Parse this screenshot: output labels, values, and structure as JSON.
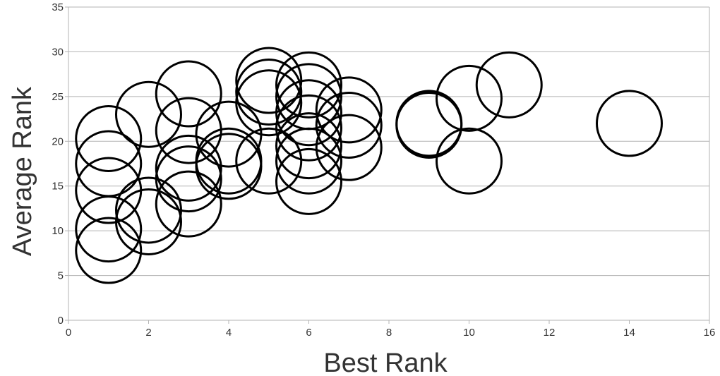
{
  "chart_data": {
    "type": "scatter",
    "subtype": "bubble",
    "title": "",
    "xlabel": "Best Rank",
    "ylabel": "Average Rank",
    "xlim": [
      0,
      16
    ],
    "ylim": [
      0,
      35
    ],
    "x_ticks": [
      0,
      2,
      4,
      6,
      8,
      10,
      12,
      14,
      16
    ],
    "y_ticks": [
      0,
      5,
      10,
      15,
      20,
      25,
      30,
      35
    ],
    "grid": "horizontal",
    "legend": "none",
    "marker_color": "#000000",
    "grid_color": "#b3b3b3",
    "series": [
      {
        "points": [
          {
            "x": 1,
            "y": 20.3
          },
          {
            "x": 1,
            "y": 17.5
          },
          {
            "x": 1,
            "y": 14.5
          },
          {
            "x": 1,
            "y": 10.2
          },
          {
            "x": 1,
            "y": 7.8
          },
          {
            "x": 2,
            "y": 23.0
          },
          {
            "x": 2,
            "y": 12.3
          },
          {
            "x": 2,
            "y": 11.0
          },
          {
            "x": 3,
            "y": 25.3
          },
          {
            "x": 3,
            "y": 21.2
          },
          {
            "x": 3,
            "y": 17.0
          },
          {
            "x": 3,
            "y": 15.8
          },
          {
            "x": 3,
            "y": 13.0
          },
          {
            "x": 4,
            "y": 20.8
          },
          {
            "x": 4,
            "y": 17.8
          },
          {
            "x": 4,
            "y": 17.2
          },
          {
            "x": 5,
            "y": 26.8
          },
          {
            "x": 5,
            "y": 25.5
          },
          {
            "x": 5,
            "y": 24.3
          },
          {
            "x": 5,
            "y": 17.8
          },
          {
            "x": 6,
            "y": 26.3
          },
          {
            "x": 6,
            "y": 25.0
          },
          {
            "x": 6,
            "y": 23.2
          },
          {
            "x": 6,
            "y": 21.5
          },
          {
            "x": 6,
            "y": 19.5
          },
          {
            "x": 6,
            "y": 17.8
          },
          {
            "x": 6,
            "y": 15.5
          },
          {
            "x": 7,
            "y": 23.5
          },
          {
            "x": 7,
            "y": 21.8
          },
          {
            "x": 7,
            "y": 19.3
          },
          {
            "x": 9,
            "y": 22.0
          },
          {
            "x": 9,
            "y": 21.8
          },
          {
            "x": 10,
            "y": 24.8
          },
          {
            "x": 10,
            "y": 17.8
          },
          {
            "x": 11,
            "y": 26.3
          },
          {
            "x": 14,
            "y": 22.0
          }
        ]
      }
    ]
  }
}
